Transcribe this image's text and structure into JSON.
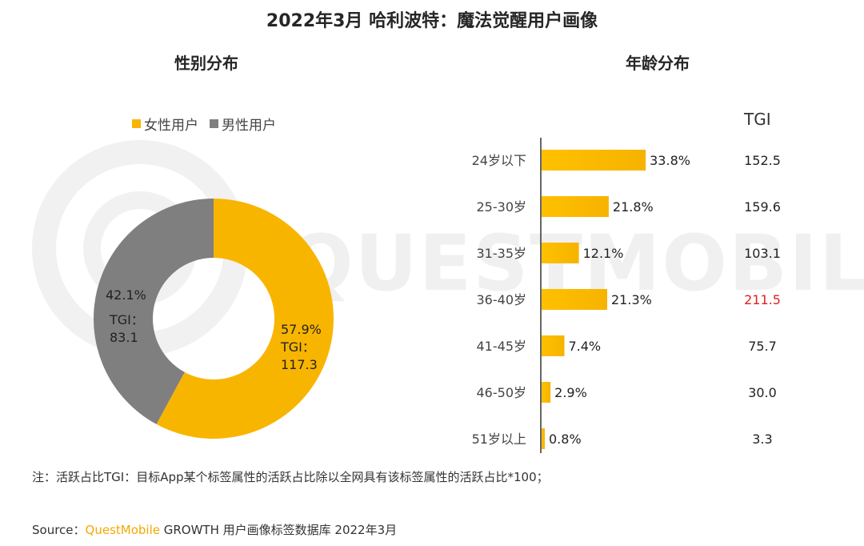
{
  "title": "2022年3月 哈利波特：魔法觉醒用户画像",
  "watermark_text": "QUESTMOBILE",
  "colors": {
    "female": "#F8B500",
    "male": "#7F7F7F",
    "highlight": "#E02020",
    "brand": "#F5A800"
  },
  "chart_data": [
    {
      "type": "pie",
      "title": "性别分布",
      "legend": [
        "女性用户",
        "男性用户"
      ],
      "legend_position": "top-left",
      "slices": [
        {
          "label": "女性用户",
          "value": 57.9,
          "value_text": "57.9%",
          "tgi_label": "TGI：",
          "tgi": "117.3"
        },
        {
          "label": "男性用户",
          "value": 42.1,
          "value_text": "42.1%",
          "tgi_label": "TGI：",
          "tgi": "83.1"
        }
      ]
    },
    {
      "type": "bar",
      "orientation": "horizontal",
      "title": "年龄分布",
      "categories": [
        "24岁以下",
        "25-30岁",
        "31-35岁",
        "36-40岁",
        "41-45岁",
        "46-50岁",
        "51岁以上"
      ],
      "values": [
        33.8,
        21.8,
        12.1,
        21.3,
        7.4,
        2.9,
        0.8
      ],
      "value_labels": [
        "33.8%",
        "21.8%",
        "12.1%",
        "21.3%",
        "7.4%",
        "2.9%",
        "0.8%"
      ],
      "tgi_header": "TGI",
      "tgi": [
        "152.5",
        "159.6",
        "103.1",
        "211.5",
        "75.7",
        "30.0",
        "3.3"
      ],
      "tgi_highlight_index": 3
    }
  ],
  "note": "注：活跃占比TGI：目标App某个标签属性的活跃占比除以全网具有该标签属性的活跃占比*100；",
  "source": {
    "prefix": "Source：",
    "brand": "QuestMobile",
    "rest": " GROWTH 用户画像标签数据库 2022年3月"
  }
}
